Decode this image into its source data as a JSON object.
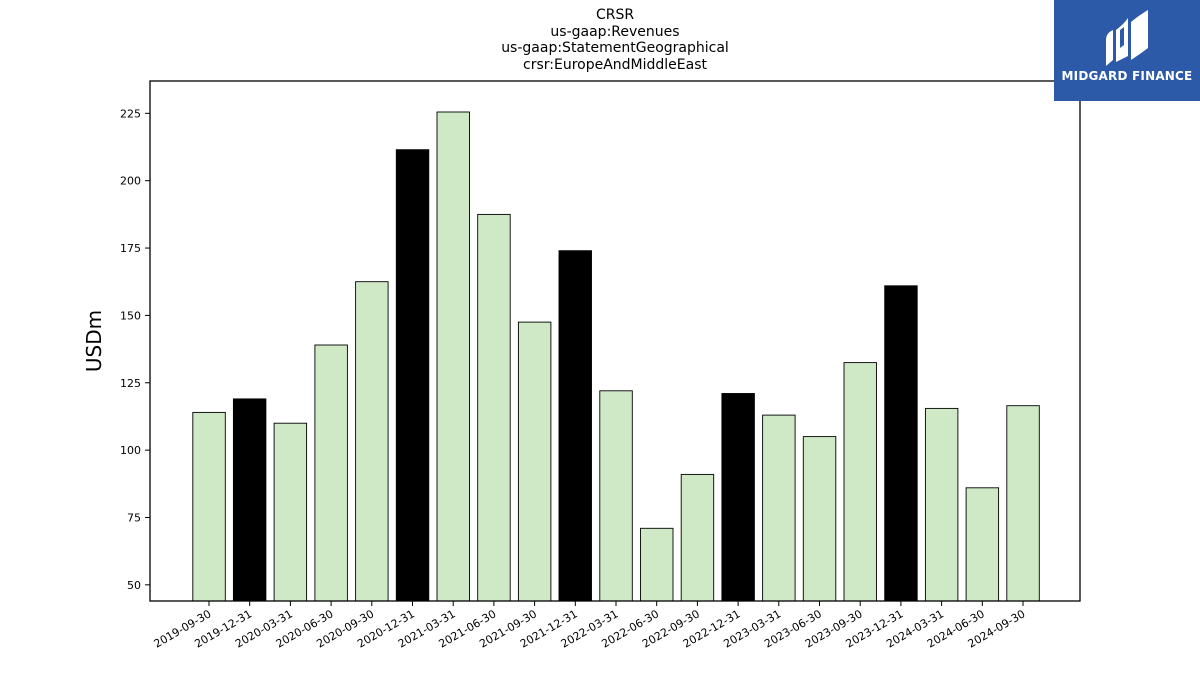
{
  "chart_data": {
    "type": "bar",
    "title_lines": [
      "CRSR",
      "us-gaap:Revenues",
      "us-gaap:StatementGeographical",
      "crsr:EuropeAndMiddleEast"
    ],
    "xlabel": "",
    "ylabel": "USDm",
    "ylim": [
      44,
      237
    ],
    "yticks": [
      50,
      75,
      100,
      125,
      150,
      175,
      200,
      225
    ],
    "grid": false,
    "colors": {
      "regular": "#cfe9c7",
      "highlight": "#000000",
      "edge": "#000000"
    },
    "categories": [
      "2019-09-30",
      "2019-12-31",
      "2020-03-31",
      "2020-06-30",
      "2020-09-30",
      "2020-12-31",
      "2021-03-31",
      "2021-06-30",
      "2021-09-30",
      "2021-12-31",
      "2022-03-31",
      "2022-06-30",
      "2022-09-30",
      "2022-12-31",
      "2023-03-31",
      "2023-06-30",
      "2023-09-30",
      "2023-12-31",
      "2024-03-31",
      "2024-06-30",
      "2024-09-30"
    ],
    "values": [
      114,
      119,
      110,
      139,
      162.5,
      211.5,
      225.5,
      187.5,
      147.5,
      174,
      122,
      71,
      91,
      121,
      113,
      105,
      132.5,
      161,
      115.5,
      86,
      116.5
    ],
    "highlight": [
      false,
      true,
      false,
      false,
      false,
      true,
      false,
      false,
      false,
      true,
      false,
      false,
      false,
      true,
      false,
      false,
      false,
      true,
      false,
      false,
      false
    ]
  },
  "logo": {
    "text": "MIDGARD FINANCE",
    "bg": "#2c5aa8"
  }
}
